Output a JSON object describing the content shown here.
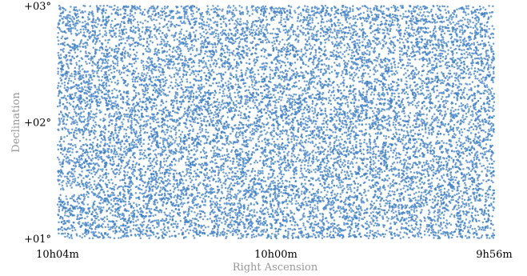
{
  "chart_data": {
    "type": "scatter",
    "title": "",
    "xlabel": "Right Ascension",
    "ylabel": "Declination",
    "x_ticks": [
      {
        "value": 151.0,
        "label": "10h04m"
      },
      {
        "value": 150.0,
        "label": "10h00m"
      },
      {
        "value": 149.0,
        "label": "9h56m"
      }
    ],
    "y_ticks": [
      {
        "value": 3.0,
        "label": "+03°"
      },
      {
        "value": 2.0,
        "label": "+02°"
      },
      {
        "value": 1.0,
        "label": "+01°"
      }
    ],
    "xlim": [
      151.0,
      149.0
    ],
    "ylim": [
      1.0,
      3.0
    ],
    "x_reversed": true,
    "grid": false,
    "point_color": "#3d7fc4",
    "approx_point_count": 14000,
    "point_distribution": "uniform random over the full RA/Dec extent"
  }
}
